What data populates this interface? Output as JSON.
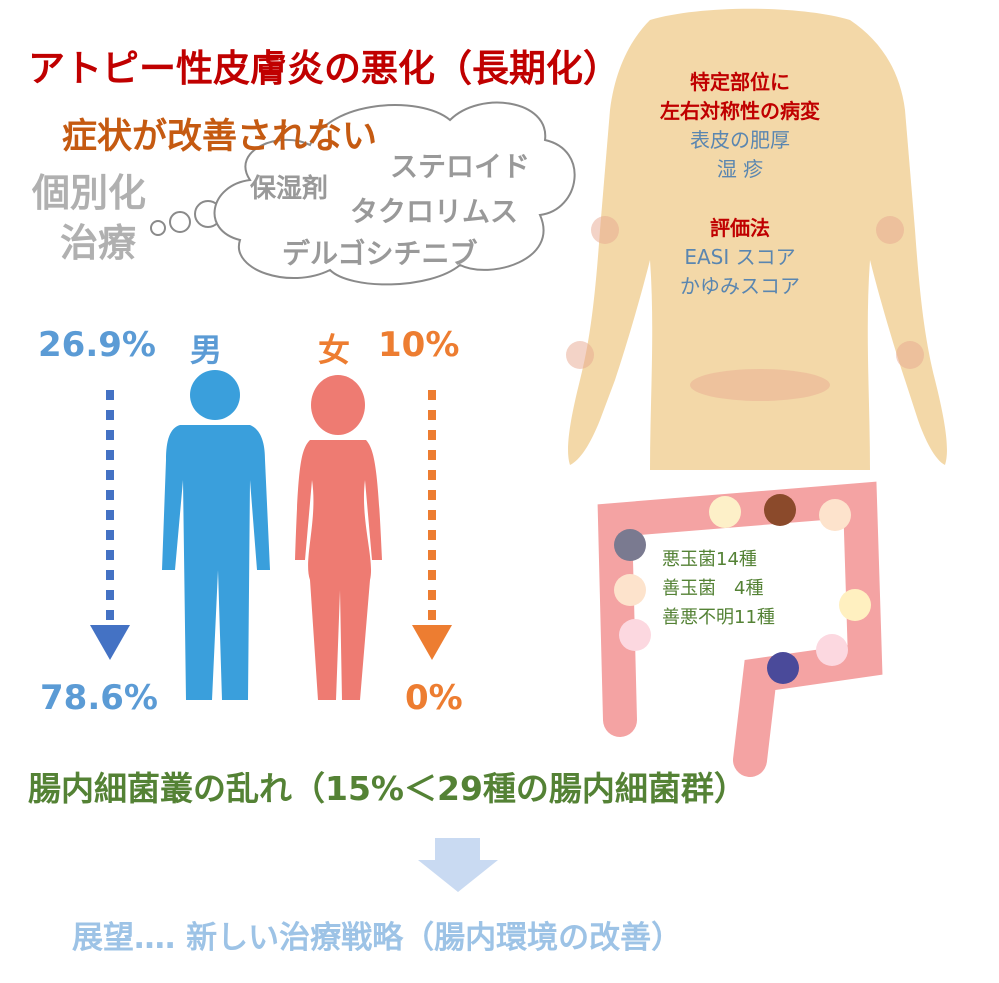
{
  "title": "アトピー性皮膚炎の悪化（長期化）",
  "subtitle": "症状が改善されない",
  "personalized": [
    "個別化",
    "治療"
  ],
  "cloud_items": [
    "保湿剤",
    "ステロイド",
    "タクロリムス",
    "デルゴシチニブ"
  ],
  "body_panel": {
    "heading1": [
      "特定部位に",
      "左右対称性の病変"
    ],
    "symptoms": [
      "表皮の肥厚",
      "湿 疹"
    ],
    "heading2": "評価法",
    "methods": [
      "EASI スコア",
      "かゆみスコア"
    ]
  },
  "male": {
    "label": "男",
    "from": "26.9%",
    "to": "78.6%",
    "color": "#3a9fdc"
  },
  "female": {
    "label": "女",
    "from": "10%",
    "to": "0%",
    "color": "#ee7b72"
  },
  "gut_panel": [
    "悪玉菌14種",
    "善玉菌　4種",
    "善悪不明11種"
  ],
  "dysbiosis": "腸内細菌叢の乱れ（15%＜29種の腸内細菌群）",
  "outlook": "展望‥‥ 新しい治療戦略（腸内環境の改善）",
  "colors": {
    "title": "#c00000",
    "subtitle": "#c55a11",
    "green": "#548235",
    "blue_text": "#5b9bd5",
    "orange_text": "#ed7d31",
    "outlook": "#9dc3e6"
  }
}
